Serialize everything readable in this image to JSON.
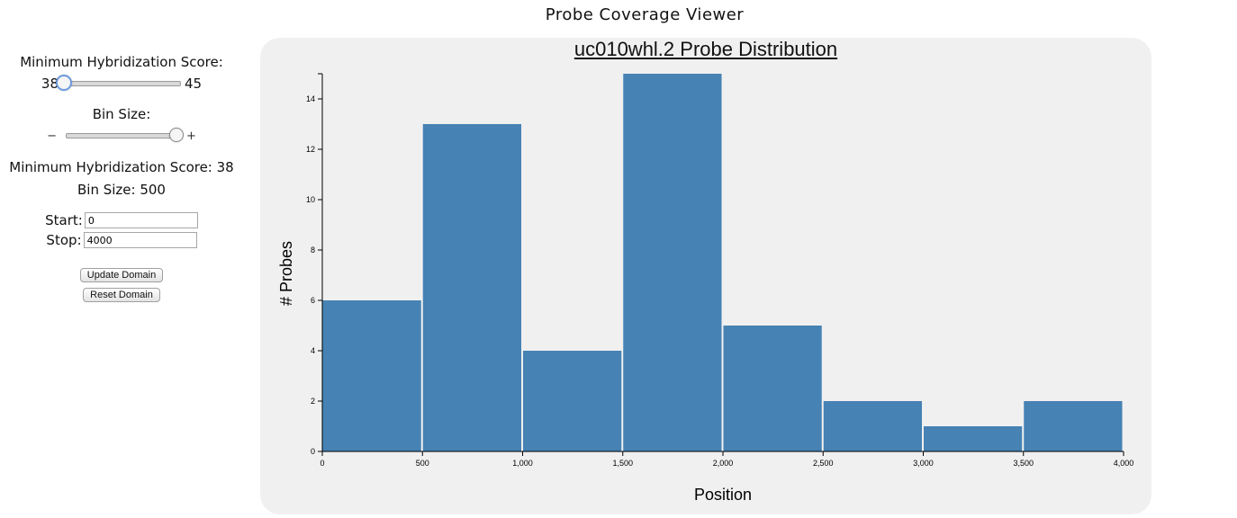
{
  "app": {
    "title": "Probe Coverage Viewer"
  },
  "controls": {
    "score_slider": {
      "label": "Minimum Hybridization Score:",
      "min": "38",
      "max": "45",
      "value": 38
    },
    "bin_slider": {
      "label": "Bin Size:",
      "minus": "−",
      "plus": "+"
    },
    "readout": {
      "score": "Minimum Hybridization Score: 38",
      "bin": "Bin Size: 500"
    },
    "start": {
      "label": "Start:",
      "value": "0"
    },
    "stop": {
      "label": "Stop:",
      "value": "4000"
    },
    "update_label": "Update Domain",
    "reset_label": "Reset Domain"
  },
  "chart_data": {
    "type": "bar",
    "title": "uc010whl.2 Probe Distribution",
    "xlabel": "Position",
    "ylabel": "# Probes",
    "bins": [
      [
        0,
        500
      ],
      [
        500,
        1000
      ],
      [
        1000,
        1500
      ],
      [
        1500,
        2000
      ],
      [
        2000,
        2500
      ],
      [
        2500,
        3000
      ],
      [
        3000,
        3500
      ],
      [
        3500,
        4000
      ]
    ],
    "values": [
      6,
      13,
      4,
      15,
      5,
      2,
      1,
      2
    ],
    "xlim": [
      0,
      4000
    ],
    "ylim": [
      0,
      15
    ],
    "xticks": [
      "0",
      "500",
      "1,000",
      "1,500",
      "2,000",
      "2,500",
      "3,000",
      "3,500",
      "4,000"
    ],
    "yticks": [
      "0",
      "2",
      "4",
      "6",
      "8",
      "10",
      "12",
      "14"
    ],
    "bar_color": "#4682b4",
    "grid": false
  }
}
